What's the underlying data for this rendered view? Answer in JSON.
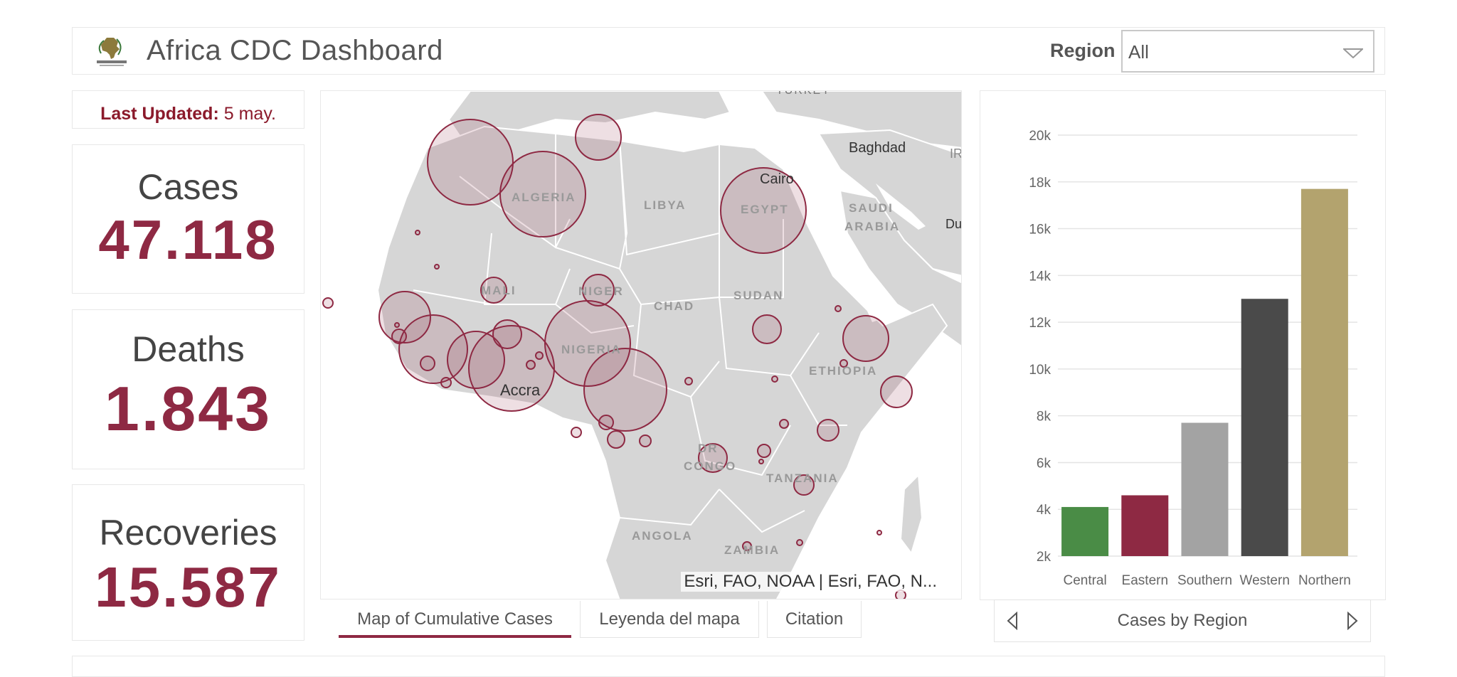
{
  "header": {
    "title": "Africa CDC Dashboard",
    "region_label": "Region",
    "region_value": "All"
  },
  "summary": {
    "updated_label": "Last Updated:",
    "updated_value": "5 may.",
    "cases_label": "Cases",
    "cases_value": "47.118",
    "deaths_label": "Deaths",
    "deaths_value": "1.843",
    "recoveries_label": "Recoveries",
    "recoveries_value": "15.587"
  },
  "map": {
    "labels": {
      "turkey": "TURKEY",
      "baghdad": "Baghdad",
      "ir": "IR",
      "cairo": "Cairo",
      "algeria": "ALGERIA",
      "libya": "LIBYA",
      "egypt": "EGYPT",
      "saudi1": "SAUDI",
      "saudi2": "ARABIA",
      "du": "Du",
      "mali": "MALI",
      "niger": "NIGER",
      "chad": "CHAD",
      "sudan": "SUDAN",
      "nigeria": "NIGERIA",
      "ethiopia": "ETHIOPIA",
      "accra": "Accra",
      "drc1": "DR",
      "drc2": "CONGO",
      "tanzania": "TANZANIA",
      "angola": "ANGOLA",
      "zambia": "ZAMBIA"
    },
    "attribution": "Esri, FAO, NOAA | Esri, FAO, N..."
  },
  "tabs": {
    "map": "Map of Cumulative Cases",
    "legend": "Leyenda del mapa",
    "citation": "Citation"
  },
  "chart_nav": {
    "caption": "Cases by Region"
  },
  "colors": {
    "accent": "#8e2943",
    "central": "#4a8c46",
    "eastern": "#8e2943",
    "southern": "#a3a3a3",
    "western": "#4a4a4a",
    "northern": "#b3a36e"
  },
  "chart_data": {
    "type": "bar",
    "title": "Cases by Region",
    "categories": [
      "Central",
      "Eastern",
      "Southern",
      "Western",
      "Northern"
    ],
    "values": [
      4100,
      4600,
      7700,
      13000,
      17700
    ],
    "ylim": [
      2000,
      20000
    ],
    "yticks": [
      2000,
      4000,
      6000,
      8000,
      10000,
      12000,
      14000,
      16000,
      18000,
      20000
    ],
    "ytick_labels": [
      "2k",
      "4k",
      "6k",
      "8k",
      "10k",
      "12k",
      "14k",
      "16k",
      "18k",
      "20k"
    ],
    "colors": [
      "#4a8c46",
      "#8e2943",
      "#a3a3a3",
      "#4a4a4a",
      "#b3a36e"
    ],
    "grid": true,
    "legend": "none"
  }
}
